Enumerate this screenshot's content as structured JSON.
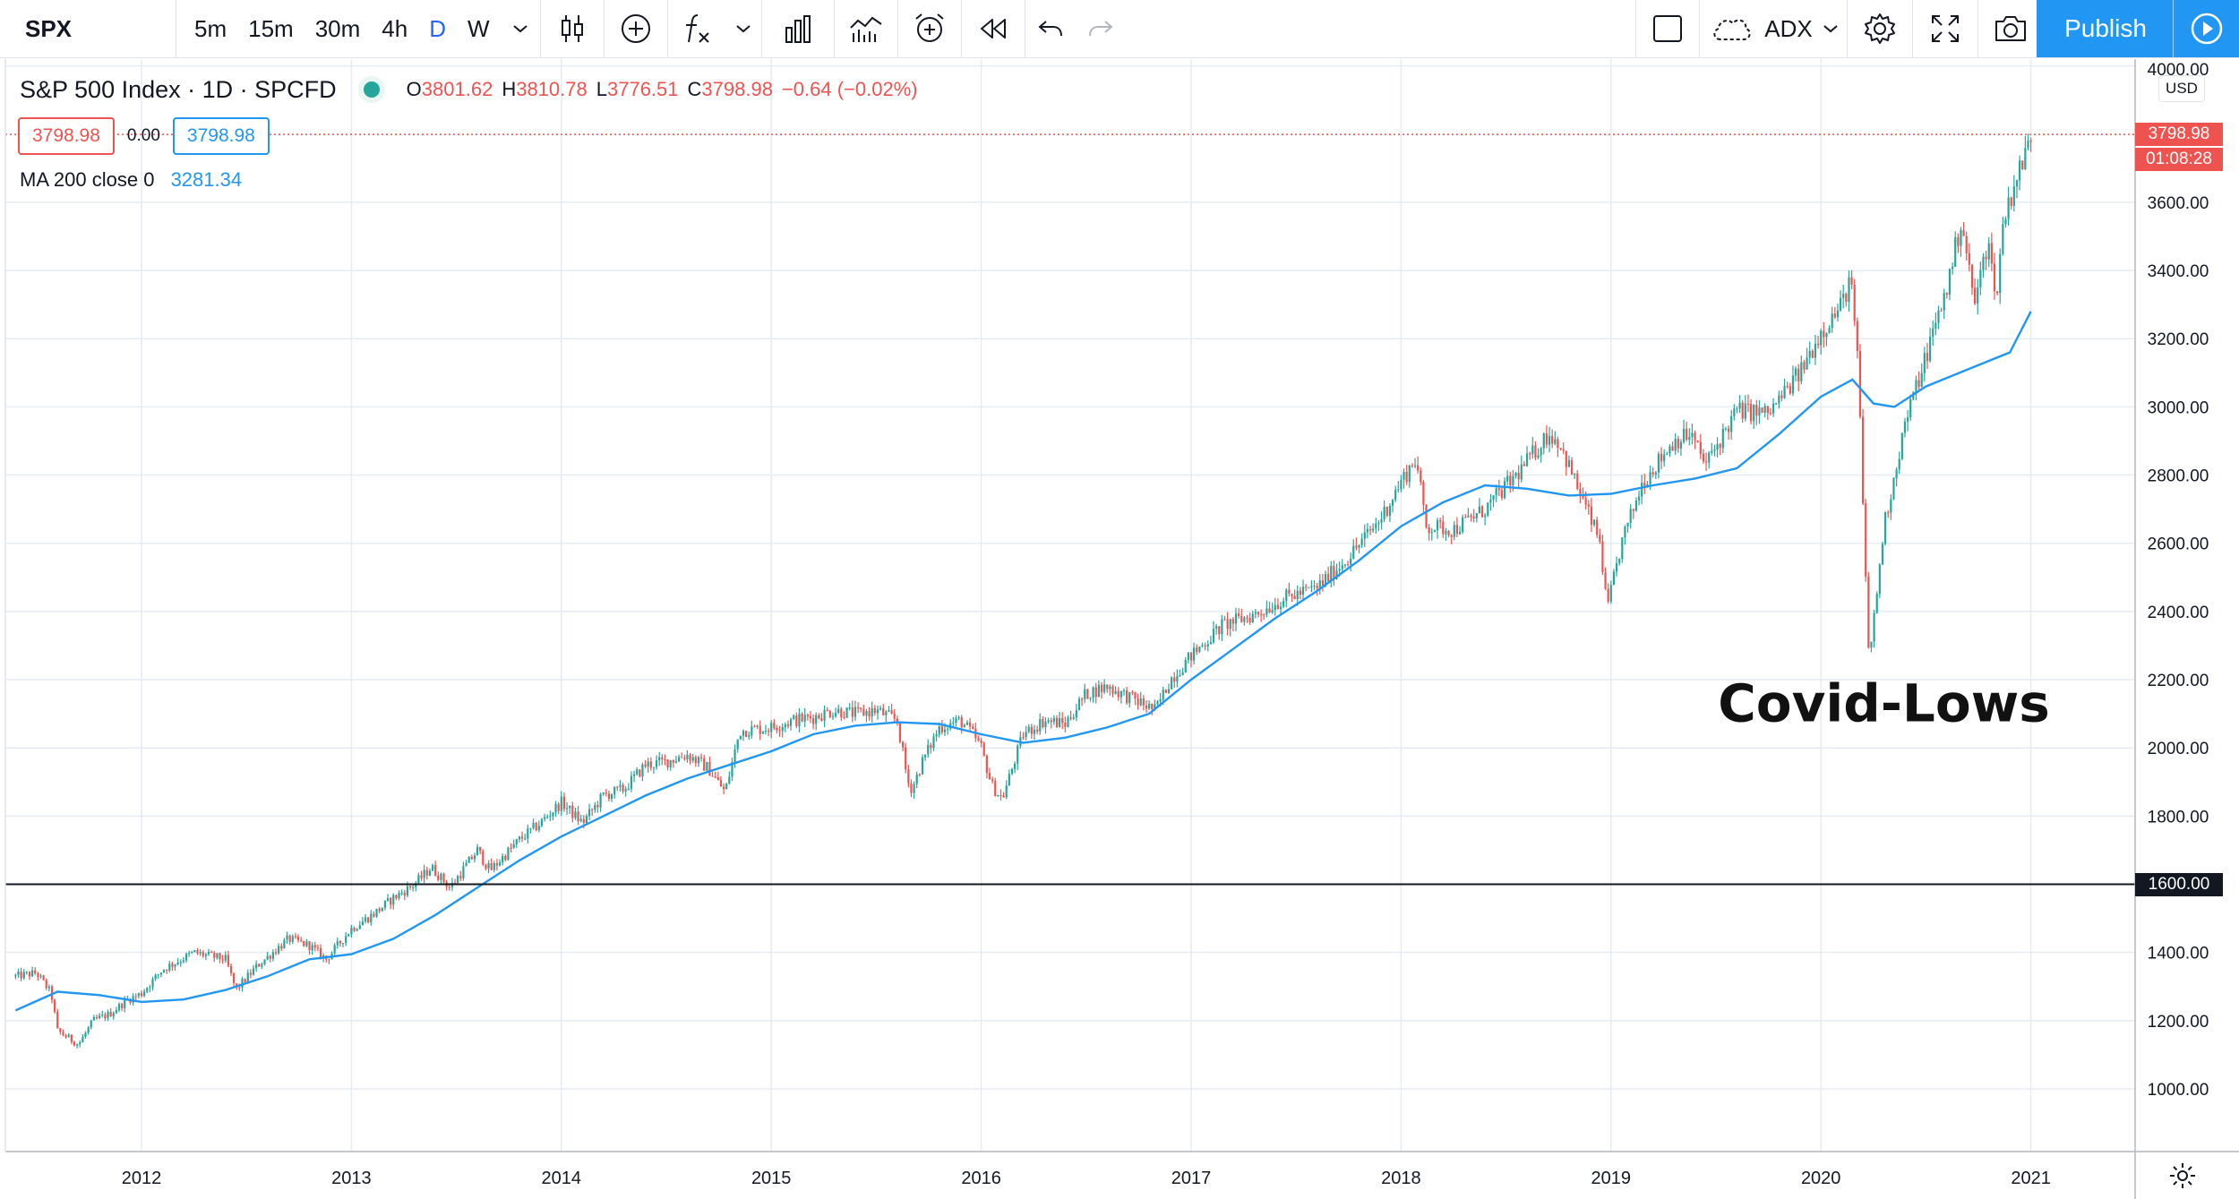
{
  "toolbar": {
    "symbol": "SPX",
    "intervals": [
      "5m",
      "15m",
      "30m",
      "4h",
      "D",
      "W"
    ],
    "active_interval": "D",
    "indicator_label": "ADX",
    "publish_label": "Publish",
    "icons": [
      "chevron-down-icon",
      "candles-icon",
      "plus-circle-icon",
      "fx-icon",
      "chevron-down-icon",
      "bar-chart-icon",
      "indicator-templates-icon",
      "alarm-icon",
      "replay-icon",
      "undo-icon",
      "redo-icon",
      "layout-icon",
      "cloud-icon",
      "chevron-down-icon",
      "gear-icon",
      "fullscreen-icon",
      "camera-icon",
      "play-icon"
    ]
  },
  "legend": {
    "title": "S&P 500 Index · 1D · SPCFD",
    "open_key": "O",
    "open": "3801.62",
    "high_key": "H",
    "high": "3810.78",
    "low_key": "L",
    "low": "3776.51",
    "close_key": "C",
    "close": "3798.98",
    "change": "−0.64 (−0.02%)",
    "bid": "3798.98",
    "spread": "0.00",
    "ask": "3798.98",
    "ma_label": "MA 200 close 0",
    "ma_value": "3281.34"
  },
  "price_axis": {
    "currency": "USD",
    "last_price_tag": "3798.98",
    "countdown_tag": "01:08:28",
    "line_tag": "1600.00"
  },
  "colors": {
    "up": "#26a69a",
    "down": "#ef5350",
    "ma": "#2196f3",
    "publish": "#2196f3",
    "grid": "#e6ecf2"
  },
  "chart_data": {
    "type": "line",
    "subtype": "candlestick price series with 200-day moving average",
    "title": "S&P 500 Index · 1D · SPCFD",
    "x_tick_labels": [
      "2012",
      "2013",
      "2014",
      "2015",
      "2016",
      "2017",
      "2018",
      "2019",
      "2020",
      "2021"
    ],
    "y_tick_labels": [
      "1000.00",
      "1200.00",
      "1400.00",
      "1600.00",
      "1800.00",
      "2000.00",
      "2200.00",
      "2400.00",
      "2600.00",
      "2800.00",
      "3000.00",
      "3200.00",
      "3400.00",
      "3600.00",
      "4000.00"
    ],
    "xlim": [
      2011.4,
      2021.5
    ],
    "ylim": [
      800,
      4040
    ],
    "grid": true,
    "annotation": {
      "text": "Covid-Lows",
      "x": 2020.3,
      "y": 2130
    },
    "horizontal_line": {
      "y": 1600
    },
    "last_price_line": {
      "y": 3798.98
    },
    "series": [
      {
        "name": "S&P 500",
        "x": [
          2011.4,
          2011.5,
          2011.57,
          2011.6,
          2011.7,
          2011.77,
          2011.85,
          2011.93,
          2012.0,
          2012.1,
          2012.25,
          2012.4,
          2012.45,
          2012.55,
          2012.7,
          2012.8,
          2012.88,
          2013.0,
          2013.1,
          2013.2,
          2013.3,
          2013.38,
          2013.47,
          2013.6,
          2013.66,
          2013.8,
          2013.9,
          2014.0,
          2014.1,
          2014.2,
          2014.3,
          2014.4,
          2014.5,
          2014.6,
          2014.7,
          2014.78,
          2014.85,
          2015.0,
          2015.1,
          2015.2,
          2015.3,
          2015.4,
          2015.5,
          2015.6,
          2015.65,
          2015.67,
          2015.72,
          2015.8,
          2015.9,
          2015.96,
          2016.0,
          2016.05,
          2016.1,
          2016.2,
          2016.3,
          2016.4,
          2016.5,
          2016.6,
          2016.7,
          2016.83,
          2016.9,
          2017.0,
          2017.15,
          2017.3,
          2017.45,
          2017.6,
          2017.75,
          2017.9,
          2018.0,
          2018.07,
          2018.12,
          2018.25,
          2018.4,
          2018.55,
          2018.7,
          2018.75,
          2018.85,
          2018.95,
          2018.98,
          2019.05,
          2019.15,
          2019.3,
          2019.38,
          2019.45,
          2019.6,
          2019.75,
          2019.9,
          2020.0,
          2020.1,
          2020.14,
          2020.18,
          2020.2,
          2020.23,
          2020.3,
          2020.4,
          2020.5,
          2020.6,
          2020.67,
          2020.73,
          2020.8,
          2020.83,
          2020.87,
          2020.92,
          2021.0
        ],
        "values": [
          1330,
          1340,
          1280,
          1170,
          1130,
          1200,
          1220,
          1260,
          1280,
          1350,
          1400,
          1380,
          1290,
          1360,
          1440,
          1420,
          1380,
          1470,
          1510,
          1560,
          1600,
          1650,
          1590,
          1700,
          1640,
          1730,
          1780,
          1840,
          1780,
          1860,
          1880,
          1950,
          1960,
          1980,
          1940,
          1870,
          2050,
          2060,
          2080,
          2090,
          2110,
          2100,
          2110,
          2080,
          1900,
          1880,
          1960,
          2060,
          2080,
          2040,
          2000,
          1890,
          1850,
          2040,
          2080,
          2070,
          2160,
          2180,
          2150,
          2110,
          2200,
          2270,
          2360,
          2390,
          2440,
          2470,
          2560,
          2670,
          2780,
          2850,
          2650,
          2640,
          2700,
          2800,
          2920,
          2900,
          2750,
          2600,
          2400,
          2600,
          2780,
          2900,
          2920,
          2830,
          2990,
          2980,
          3100,
          3220,
          3300,
          3380,
          3100,
          2700,
          2250,
          2650,
          2950,
          3150,
          3350,
          3550,
          3300,
          3500,
          3300,
          3550,
          3650,
          3790
        ]
      },
      {
        "name": "MA 200 close 0",
        "x": [
          2011.4,
          2011.6,
          2011.8,
          2012.0,
          2012.2,
          2012.4,
          2012.6,
          2012.8,
          2013.0,
          2013.2,
          2013.4,
          2013.6,
          2013.8,
          2014.0,
          2014.2,
          2014.4,
          2014.6,
          2014.8,
          2015.0,
          2015.2,
          2015.4,
          2015.6,
          2015.8,
          2016.0,
          2016.2,
          2016.4,
          2016.6,
          2016.8,
          2017.0,
          2017.2,
          2017.4,
          2017.6,
          2017.8,
          2018.0,
          2018.2,
          2018.4,
          2018.6,
          2018.8,
          2019.0,
          2019.2,
          2019.4,
          2019.6,
          2019.8,
          2020.0,
          2020.15,
          2020.25,
          2020.35,
          2020.5,
          2020.7,
          2020.9,
          2021.0
        ],
        "values": [
          1230,
          1285,
          1275,
          1255,
          1262,
          1290,
          1330,
          1380,
          1395,
          1440,
          1510,
          1590,
          1670,
          1740,
          1800,
          1860,
          1910,
          1950,
          1990,
          2040,
          2065,
          2075,
          2070,
          2040,
          2015,
          2030,
          2060,
          2100,
          2200,
          2290,
          2380,
          2460,
          2550,
          2650,
          2720,
          2770,
          2760,
          2740,
          2745,
          2770,
          2790,
          2820,
          2920,
          3030,
          3080,
          3010,
          3000,
          3060,
          3110,
          3160,
          3280
        ]
      }
    ]
  }
}
